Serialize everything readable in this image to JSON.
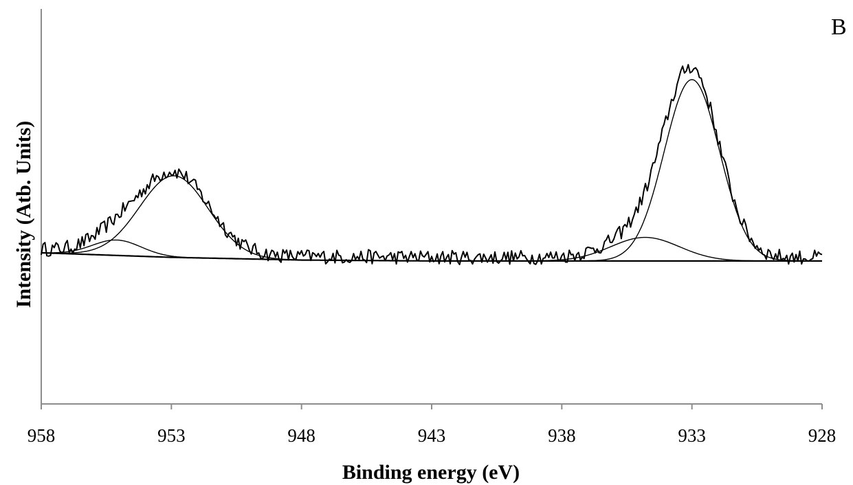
{
  "chart_data": {
    "type": "line",
    "panel_label": "B",
    "xlabel": "Binding energy (eV)",
    "ylabel": "Intensity (Atb. Units)",
    "xlim": [
      958,
      928
    ],
    "x_reversed": true,
    "ylim": [
      -1,
      1
    ],
    "y_ticks_shown": false,
    "x_ticks": [
      958,
      953,
      948,
      943,
      938,
      933,
      928
    ],
    "x_tick_labels": [
      "958",
      "953",
      "948",
      "943",
      "938",
      "933",
      "928"
    ],
    "grid": false,
    "legend": "none",
    "colors": {
      "line": "#000000",
      "axis": "#8c8c8c"
    },
    "series": [
      {
        "role": "background",
        "x": [
          958,
          953,
          948,
          943,
          938,
          933,
          928
        ],
        "y": [
          0.0,
          -0.025,
          -0.04,
          -0.045,
          -0.045,
          -0.045,
          -0.045
        ]
      },
      {
        "role": "fitted-peak",
        "center": 952.9,
        "height": 0.45,
        "fwhm": 3.1
      },
      {
        "role": "fitted-peak",
        "center": 955.1,
        "height": 0.085,
        "fwhm": 2.2
      },
      {
        "role": "fitted-peak",
        "center": 933.0,
        "height": 1.0,
        "fwhm": 2.5
      },
      {
        "role": "fitted-peak",
        "center": 934.8,
        "height": 0.13,
        "fwhm": 3.1
      },
      {
        "role": "raw-data",
        "noise_amplitude": 0.04
      }
    ]
  }
}
